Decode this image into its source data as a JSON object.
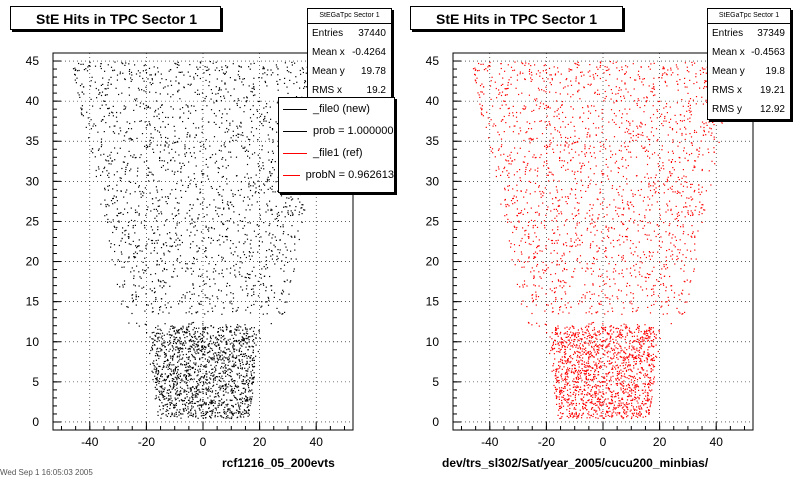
{
  "canvas_background": "#ffffff",
  "footer_text": "Wed Sep 1 16:05:03 2005",
  "legend": {
    "entries": [
      {
        "label": "_file0 (new)",
        "color": "#000000"
      },
      {
        "label": "prob = 1.000000",
        "color": "#000000"
      },
      {
        "label": "_file1 (ref)",
        "color": "#ff0000"
      },
      {
        "label": "probN = 0.962613",
        "color": "#ff0000"
      }
    ]
  },
  "left": {
    "title": "StE Hits in TPC Sector 1",
    "caption": "rcf1216_05_200evts",
    "stats": {
      "name": "StEGaTpc Sector 1",
      "rows": [
        {
          "label": "Entries",
          "value": "37440"
        },
        {
          "label": "Mean x",
          "value": "-0.4264"
        },
        {
          "label": "Mean y",
          "value": "19.78"
        },
        {
          "label": "RMS x",
          "value": "19.2"
        }
      ]
    }
  },
  "right": {
    "title": "StE Hits in TPC Sector 1",
    "caption": "dev/trs_sl302/Sat/year_2005/cucu200_minbias/",
    "stats": {
      "name": "StEGaTpc Sector 1",
      "rows": [
        {
          "label": "Entries",
          "value": "37349"
        },
        {
          "label": "Mean x",
          "value": "-0.4563"
        },
        {
          "label": "Mean y",
          "value": "19.8"
        },
        {
          "label": "RMS x",
          "value": "19.21"
        },
        {
          "label": "RMS y",
          "value": "12.92"
        }
      ]
    }
  },
  "chart_data": [
    {
      "type": "scatter",
      "title": "StE Hits in TPC Sector 1",
      "xlabel": "",
      "ylabel": "",
      "xlim": [
        -53,
        53
      ],
      "ylim": [
        -1,
        46
      ],
      "xticks": [
        -40,
        -20,
        0,
        20,
        40
      ],
      "yticks": [
        0,
        5,
        10,
        15,
        20,
        25,
        30,
        35,
        40,
        45
      ],
      "grid": true,
      "series": [
        {
          "name": "_file0 (new)",
          "color": "#000000",
          "entries": 37440,
          "region_outline": [
            [
              -16,
              0.5
            ],
            [
              16,
              0.5
            ],
            [
              21,
              12
            ],
            [
              28,
              12
            ],
            [
              47,
              45
            ],
            [
              -47,
              45
            ],
            [
              -28,
              12
            ],
            [
              -21,
              12
            ]
          ],
          "gap_y": [
            12.5,
            13.5
          ]
        }
      ]
    },
    {
      "type": "scatter",
      "title": "StE Hits in TPC Sector 1",
      "xlabel": "",
      "ylabel": "",
      "xlim": [
        -53,
        53
      ],
      "ylim": [
        -1,
        46
      ],
      "xticks": [
        -40,
        -20,
        0,
        20,
        40
      ],
      "yticks": [
        0,
        5,
        10,
        15,
        20,
        25,
        30,
        35,
        40,
        45
      ],
      "grid": true,
      "series": [
        {
          "name": "_file1 (ref)",
          "color": "#ff0000",
          "entries": 37349,
          "region_outline": [
            [
              -16,
              0.5
            ],
            [
              16,
              0.5
            ],
            [
              21,
              12
            ],
            [
              28,
              12
            ],
            [
              47,
              45
            ],
            [
              -47,
              45
            ],
            [
              -28,
              12
            ],
            [
              -21,
              12
            ]
          ],
          "gap_y": [
            12.5,
            13.5
          ]
        }
      ]
    }
  ]
}
